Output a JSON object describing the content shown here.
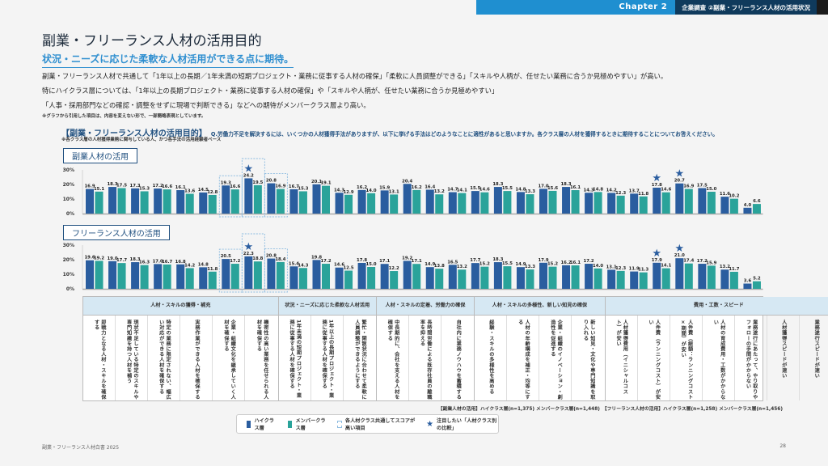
{
  "header": {
    "chapter": "Chapter 2",
    "section": "企業調査 ②副業・フリーランス人材の活用状況"
  },
  "title": "副業・フリーランス人材の活用目的",
  "subtitle": "状況・ニーズに応じた柔軟な人材活用ができる点に期待。",
  "paragraphs": [
    "副業・フリーランス人材で共通して「1年以上の長期／1年未満の短期プロジェクト・業務に従事する人材の確保」「柔軟に人員調整ができる」「スキルや人柄が、任せたい業務に合うか見極めやすい」が高い。",
    "特にハイクラス層については、「1年以上の長期プロジェクト・業務に従事する人材の確保」や「スキルや人柄が、任せたい業務に合うか見極めやすい」",
    "「人事・採用部門などの確認・調整をせずに現場で判断できる」などへの期待がメンバークラス層より高い。"
  ],
  "note": "※グラフから引用した項目は、内容を変えない形で、一部簡略表現としています。",
  "question": {
    "tag": "【副業・フリーランス人材の活用目的】",
    "text": "Q.労働力不足を解決するには、いくつかの人材獲得手法がありますが、以下に挙げる手法はどのようなことに適性があると思いますか。各クラス層の人材を獲得するときに期待することについてお答えください。",
    "base": "※各クラス層の人材獲得業務に関与している人、かつ各手法の活用経験者ベース"
  },
  "chart_data": [
    {
      "type": "bar",
      "title": "副業人材の活用",
      "ylabel": "",
      "ylim": [
        0,
        30
      ],
      "yticks": [
        "0%",
        "10%",
        "20%",
        "30%"
      ],
      "series": [
        {
          "name": "ハイクラス層",
          "color": "#2a5d9f",
          "values": [
            16.9,
            18.3,
            17.3,
            17.2,
            16.1,
            14.5,
            19.3,
            24.2,
            20.8,
            16.7,
            20.1,
            14.3,
            16.2,
            15.9,
            20.4,
            16.4,
            14.7,
            15.5,
            18.3,
            14.8,
            17.0,
            18.3,
            14.3,
            14.2,
            13.7,
            17.8,
            20.7,
            17.5,
            11.6,
            4.0
          ]
        },
        {
          "name": "メンバークラス層",
          "color": "#2aa39a",
          "values": [
            15.1,
            17.5,
            15.3,
            16.6,
            13.6,
            12.8,
            16.6,
            19.5,
            16.9,
            15.3,
            19.1,
            12.9,
            14.0,
            13.1,
            16.2,
            13.2,
            14.1,
            14.6,
            15.5,
            13.3,
            15.6,
            16.1,
            14.8,
            12.3,
            11.8,
            14.6,
            16.9,
            15.0,
            10.2,
            6.6
          ]
        }
      ],
      "highlight_common": [
        6,
        7,
        8
      ],
      "highlight_star": [
        7,
        25,
        26
      ]
    },
    {
      "type": "bar",
      "title": "フリーランス人材の活用",
      "ylabel": "",
      "ylim": [
        0,
        30
      ],
      "yticks": [
        "0%",
        "10%",
        "20%",
        "30%"
      ],
      "series": [
        {
          "name": "ハイクラス層",
          "color": "#2a5d9f",
          "values": [
            19.6,
            19.0,
            18.3,
            17.0,
            16.8,
            14.8,
            20.5,
            22.3,
            20.8,
            15.4,
            19.8,
            14.6,
            17.8,
            17.1,
            19.2,
            14.9,
            16.5,
            17.7,
            18.3,
            14.9,
            17.9,
            16.2,
            17.2,
            13.1,
            11.9,
            17.9,
            21.0,
            17.2,
            13.2,
            3.6
          ]
        },
        {
          "name": "メンバークラス層",
          "color": "#2aa39a",
          "values": [
            19.2,
            17.7,
            16.3,
            16.7,
            14.2,
            11.8,
            17.2,
            18.8,
            18.4,
            14.3,
            17.2,
            12.5,
            15.0,
            12.2,
            17.1,
            13.8,
            13.2,
            15.2,
            15.5,
            13.3,
            15.2,
            16.1,
            14.0,
            12.3,
            11.3,
            14.1,
            17.4,
            15.9,
            11.7,
            5.2
          ]
        }
      ],
      "highlight_common": [
        6,
        7,
        8
      ],
      "highlight_star": [
        7,
        25,
        26
      ]
    }
  ],
  "category_groups": [
    {
      "label": "人材・スキルの獲得・補充",
      "items": [
        "即戦力となる人材・スキルを確保する",
        "現状不足している特定のスキルや専門知識を持つ人材を補う",
        "特定の業務に限定されない、幅広い対応ができる人材を確保する",
        "実務作業ができる人材を確保する",
        "企業・組織文化を継承していく人材を確保する",
        "機密性の高い業務を任せられる人材を確保する"
      ]
    },
    {
      "label": "状況・ニーズに応じた柔軟な人材活用",
      "items": [
        "1年未満の短期プロジェクト・業務に従事する人材を確保する",
        "1年以上の長期プロジェクト・業務に従事する人材を確保する",
        "繁忙・閑散状況に合わせて柔軟に人員調整ができるようにする"
      ]
    },
    {
      "label": "人材・スキルの定着、労働力の確保",
      "items": [
        "中長期的に、会社を支える人材を確保する",
        "長時間労働による既存社員の離職率を抑える",
        "自社内に業務ノウハウを蓄積する"
      ]
    },
    {
      "label": "人材・スキルの多様性、新しい知見の確保",
      "items": [
        "経験・スキルの多様性を高める",
        "人材の年齢構成を補正・均等にする",
        "企業・組織のイノベーション・創造性を促進する",
        "新しい知見・文化や専門知識を取り入れる"
      ]
    },
    {
      "label": "費用・工数・スピード",
      "items": [
        "人材獲得費用（イニシャルコスト）が安い",
        "人件費（ランニングコスト）が安い",
        "人件費（総額：ランニングコスト×期間）が安い",
        "人材の育成費用・工数がかからない",
        "業務遂行にあたって、やり取りやフォローの手間がかからない",
        "人材獲得スピードが速い",
        "業務遂行スピードが速い"
      ]
    },
    {
      "label": "社内風土・ハードル",
      "items": [
        "その手段に慣れている",
        "会社や上長の承認を得やすい",
        "人事・採用部門などの確認・調整をせずに現場で判断できる",
        "スキルや人柄が、任せたい業務に合うかどうかを見極めやすい",
        "確実に人材を獲得できる・未充足のリスクが低い",
        "情報漏洩・ノウハウ流出のリスクが低い"
      ]
    },
    {
      "label": "",
      "items": [
        "あてはまるものはない／この手法は適さない"
      ]
    }
  ],
  "sample_sizes": "【副業人材の活用】ハイクラス層(n=1,375) メンバークラス層(n=1,448)　【フリーランス人材の活用】ハイクラス層(n=1,258) メンバークラス層(n=1,456)",
  "legend": {
    "high": "ハイクラス層",
    "member": "メンバークラス層",
    "common": "各人材クラス共通してスコアが高い項目",
    "star": "注目したい「人材クラス別の比較」"
  },
  "footer": {
    "left": "副業・フリーランス人材白書 2025",
    "page": "28"
  }
}
